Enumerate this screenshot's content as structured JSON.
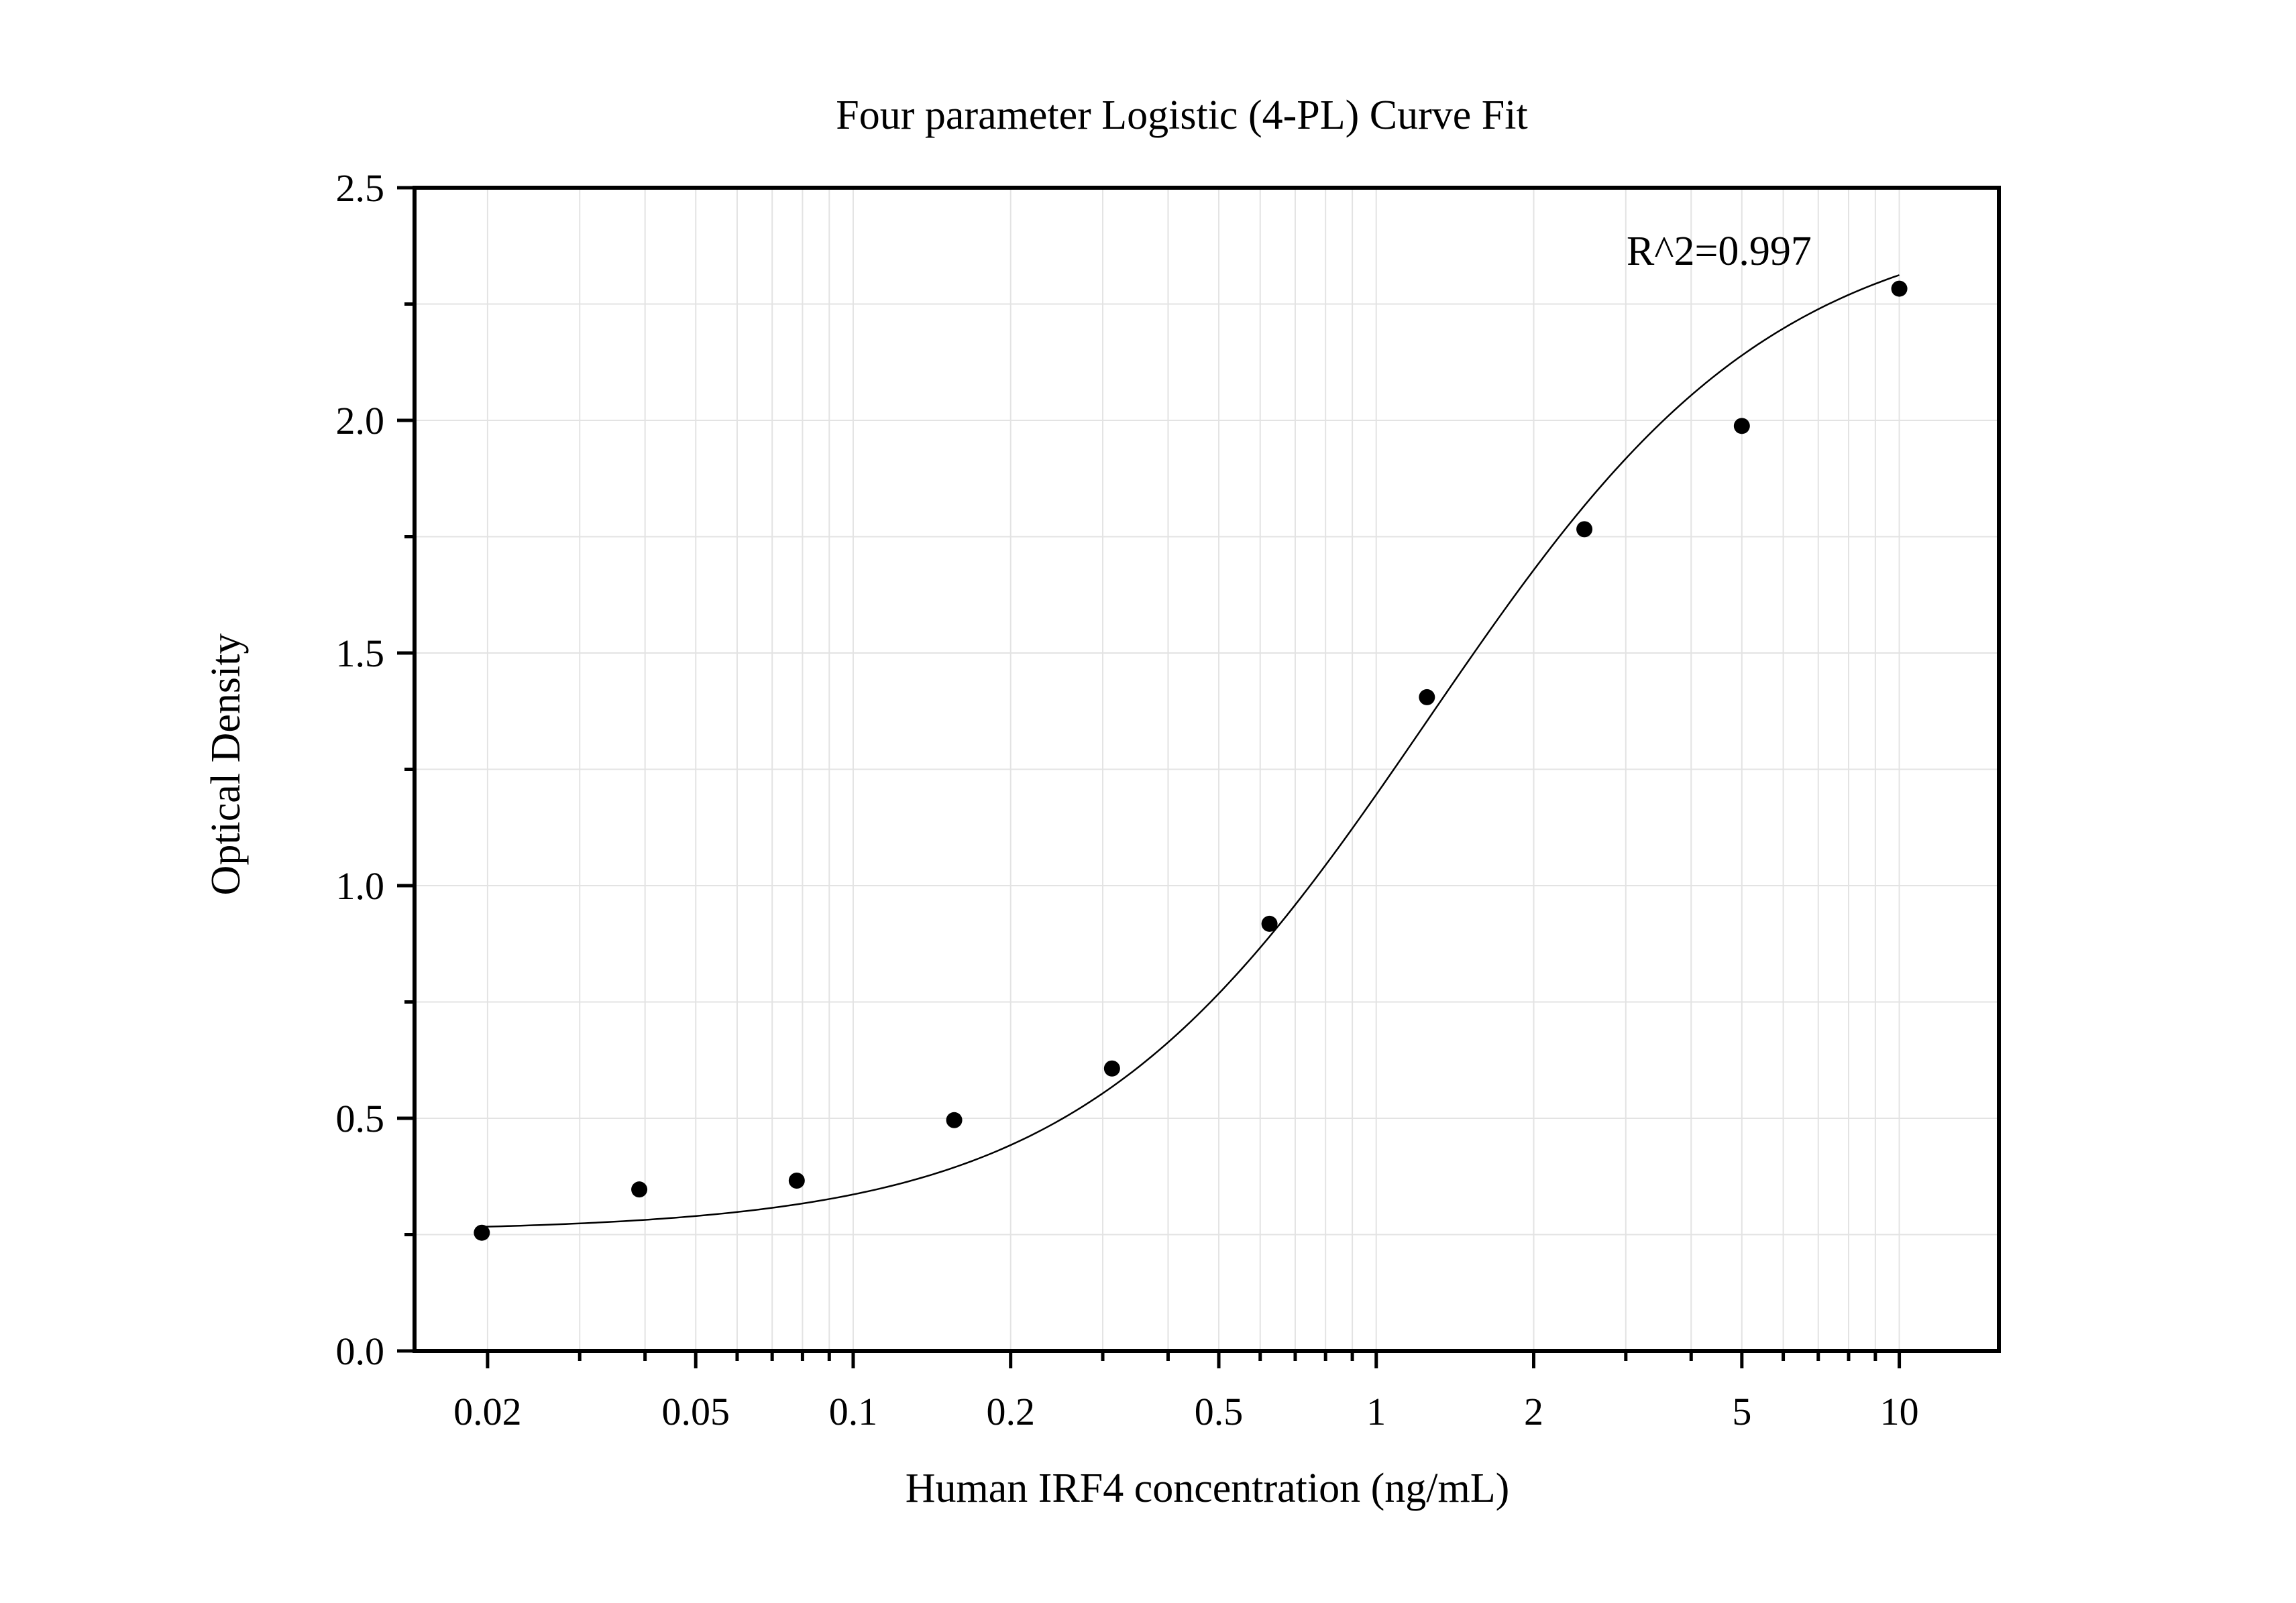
{
  "chart_data": {
    "type": "scatter",
    "title": "Four parameter Logistic (4-PL) Curve Fit",
    "xlabel": "Human IRF4 concentration (ng/mL)",
    "ylabel": "Optical Density",
    "x_scale": "log",
    "xlim": [
      0.0145,
      15.5
    ],
    "ylim": [
      0,
      2.5
    ],
    "grid": true,
    "x_ticks": [
      0.02,
      0.05,
      0.1,
      0.2,
      0.5,
      1,
      2,
      5,
      10
    ],
    "x_tick_labels": [
      "0.02",
      "0.05",
      "0.1",
      "0.2",
      "0.5",
      "1",
      "2",
      "5",
      "10"
    ],
    "y_ticks": [
      0,
      0.5,
      1,
      1.5,
      2,
      2.5
    ],
    "y_tick_labels": [
      "0.0",
      "0.5",
      "1.0",
      "1.5",
      "2.0",
      "2.5"
    ],
    "series": [
      {
        "x": [
          0.0195,
          0.039,
          0.078,
          0.156,
          0.3125,
          0.625,
          1.25,
          2.5,
          5,
          10
        ],
        "y": [
          0.254,
          0.347,
          0.366,
          0.496,
          0.607,
          0.918,
          1.405,
          1.766,
          1.988,
          2.283
        ]
      }
    ],
    "fit_curve": {
      "model": "4PL",
      "A": 0.257,
      "B": 1.3,
      "C": 1.25,
      "D": 2.45,
      "x_range": [
        0.0195,
        10
      ]
    },
    "annotation": "R^2=0.997"
  }
}
